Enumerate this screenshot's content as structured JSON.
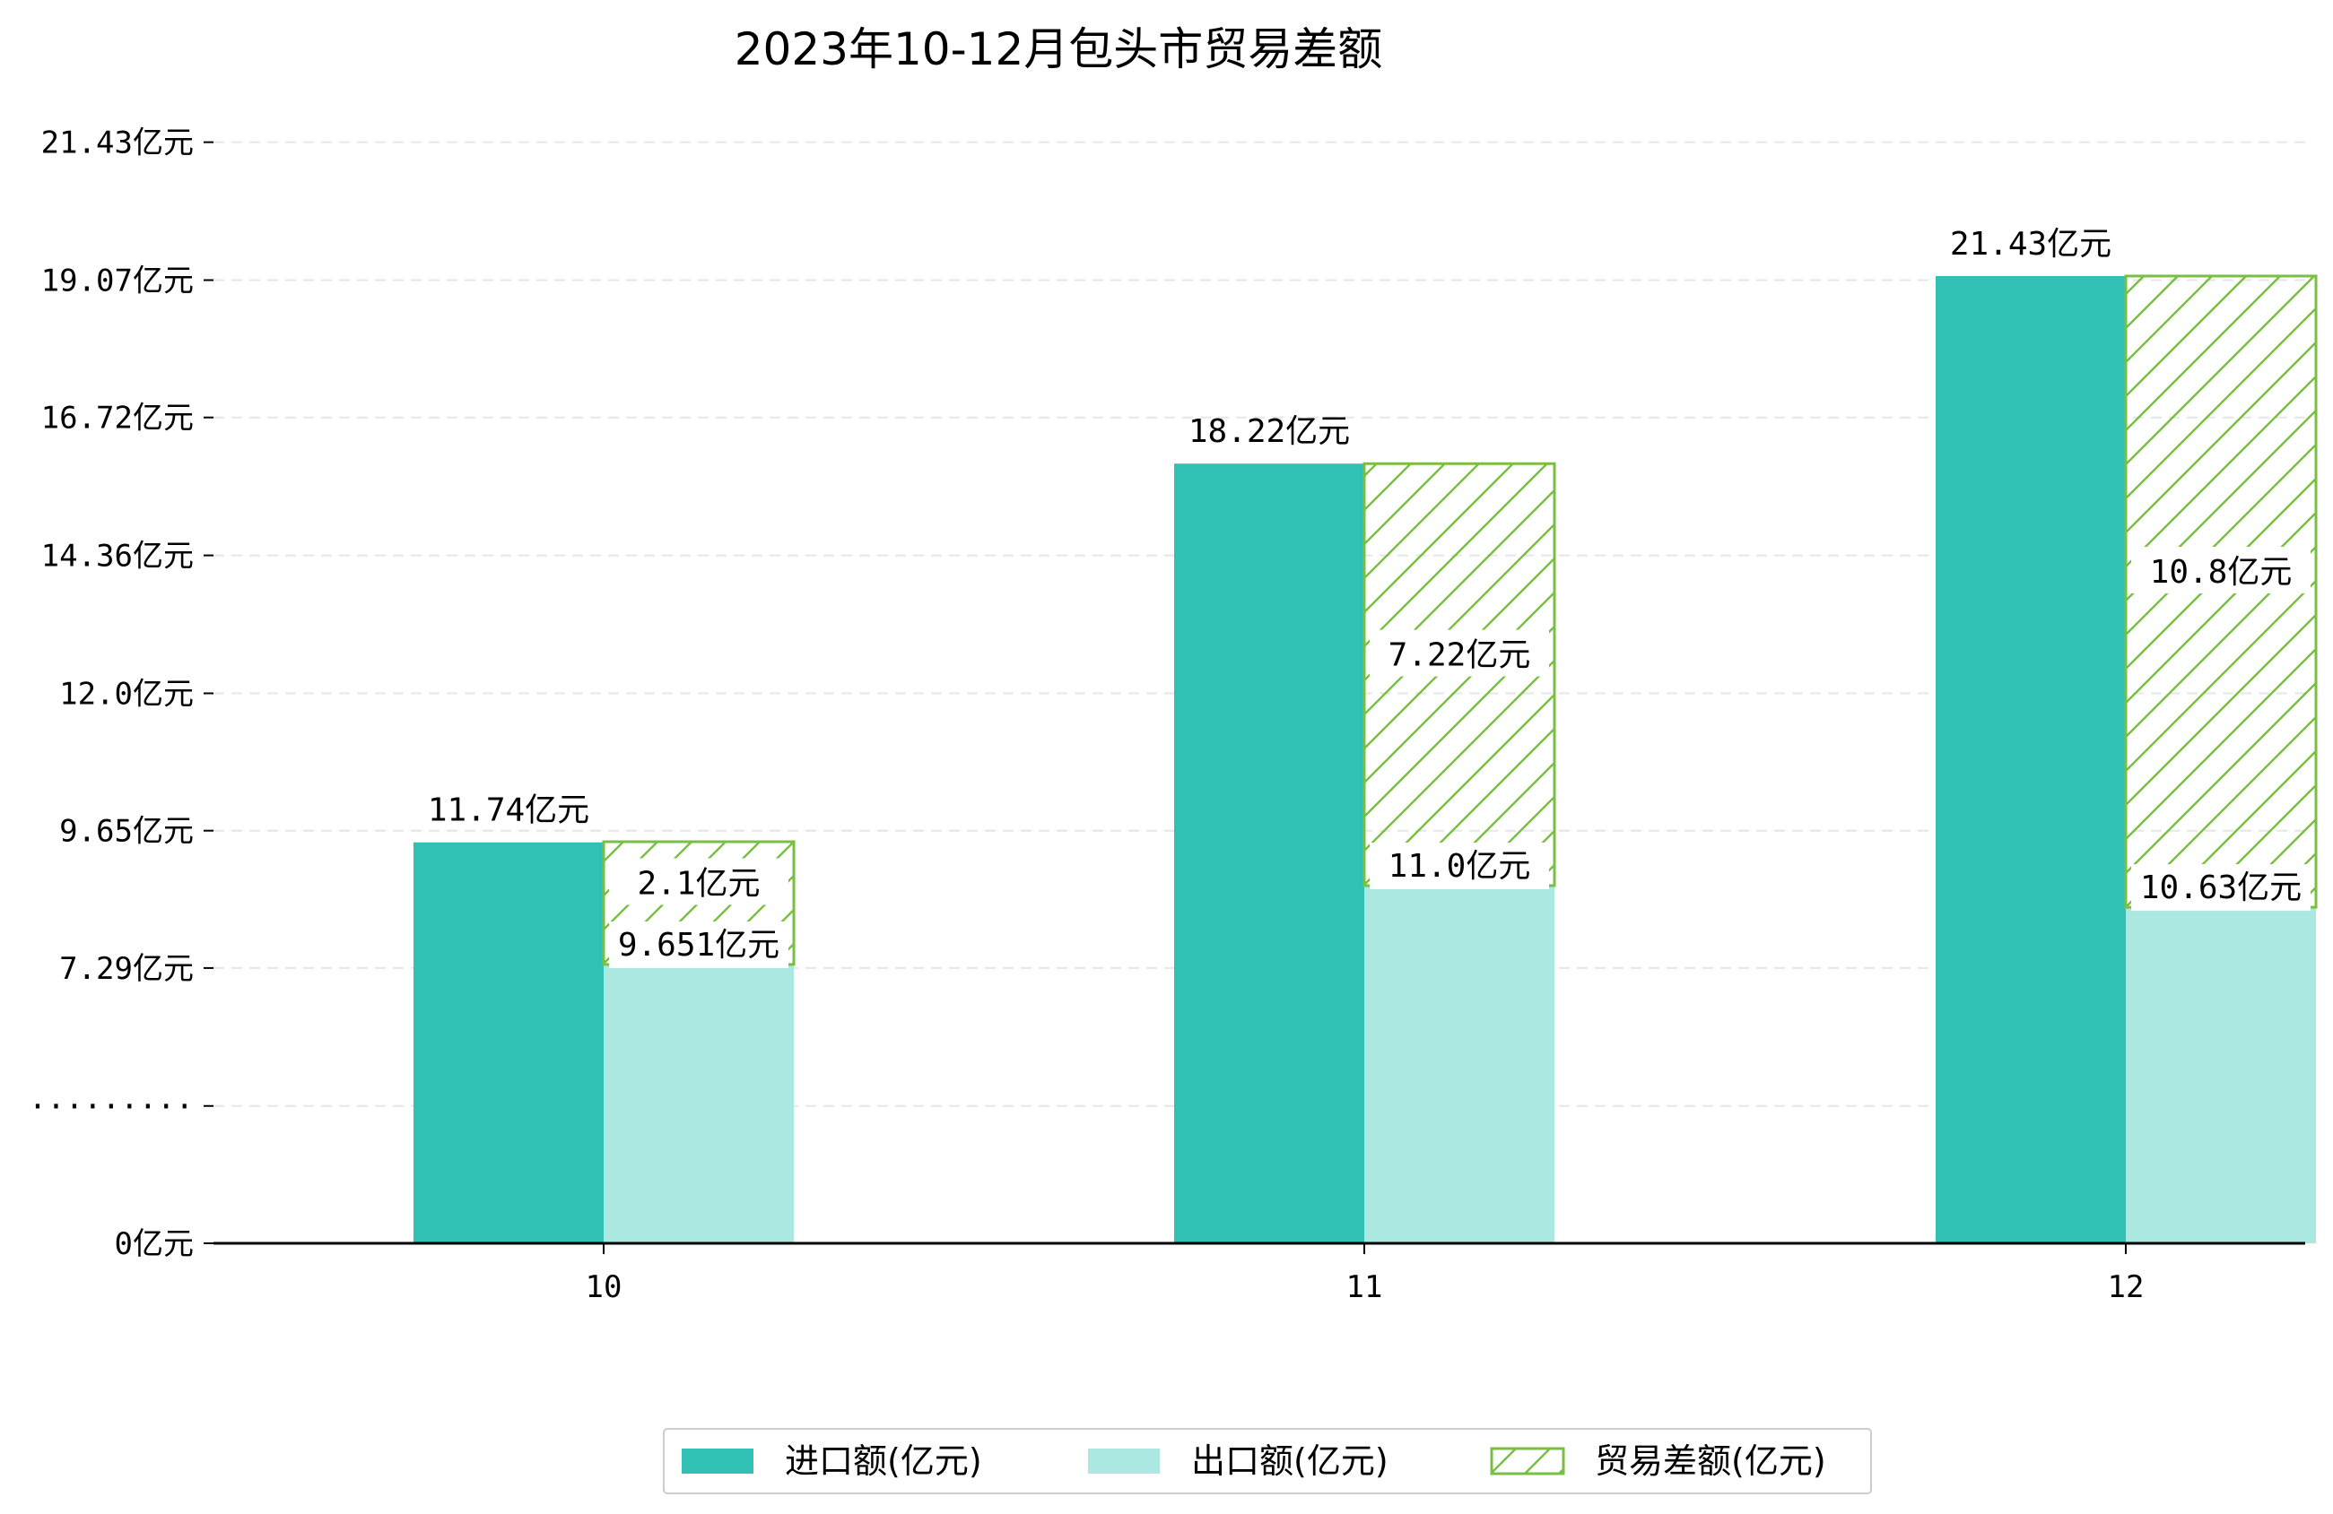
{
  "chart_data": {
    "type": "bar",
    "title": "2023年10-12月包头市贸易差额",
    "categories": [
      "10",
      "11",
      "12"
    ],
    "series": [
      {
        "name": "进口额(亿元)",
        "values": [
          11.74,
          18.22,
          21.43
        ],
        "labels": [
          "11.74亿元",
          "18.22亿元",
          "21.43亿元"
        ]
      },
      {
        "name": "出口额(亿元)",
        "values": [
          9.651,
          11.0,
          10.63
        ],
        "labels": [
          "9.651亿元",
          "11.0亿元",
          "10.63亿元"
        ]
      },
      {
        "name": "贸易差额(亿元)",
        "values": [
          2.1,
          7.22,
          10.8
        ],
        "labels": [
          "2.1亿元",
          "7.22亿元",
          "10.8亿元"
        ]
      }
    ],
    "y_ticks": [
      {
        "label": "0亿元",
        "value": 0
      },
      {
        "label": "·········",
        "value": 2.35
      },
      {
        "label": "7.29亿元",
        "value": 4.71
      },
      {
        "label": "9.65亿元",
        "value": 7.06
      },
      {
        "label": "12.0亿元",
        "value": 9.41
      },
      {
        "label": "14.36亿元",
        "value": 11.77
      },
      {
        "label": "16.72亿元",
        "value": 14.13
      },
      {
        "label": "19.07亿元",
        "value": 16.48
      },
      {
        "label": "21.43亿元",
        "value": 18.84
      }
    ],
    "y_axis_break": {
      "from": 0,
      "to": 4.88
    },
    "grid": true,
    "legend_position": "bottom-center",
    "colors": {
      "import": "#30c0b4",
      "export": "#abe8e1",
      "balance_stroke": "#79bf43",
      "balance_fill": "#ffffff"
    }
  }
}
